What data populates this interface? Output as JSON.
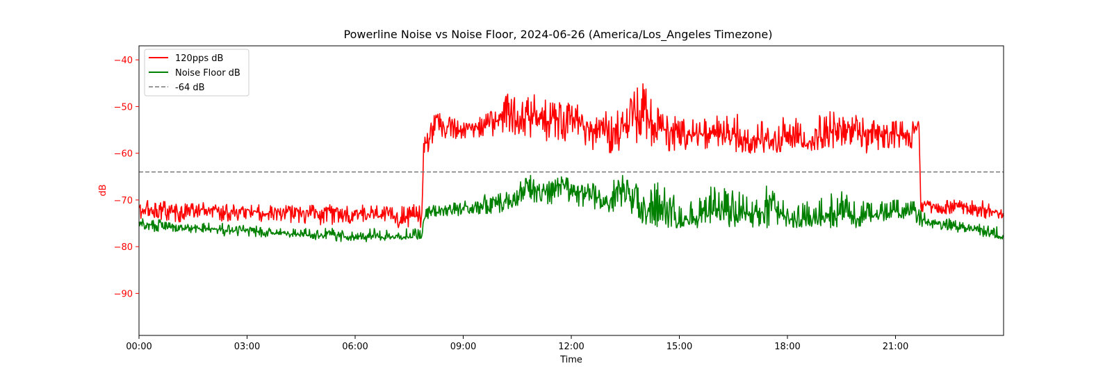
{
  "chart_data": {
    "type": "line",
    "title": "Powerline Noise vs Noise Floor, 2024-06-26 (America/Los_Angeles Timezone)",
    "xlabel": "Time",
    "ylabel": "dB",
    "xlim_hours": [
      0,
      24
    ],
    "ylim": [
      -99,
      -37
    ],
    "x_ticks": [
      {
        "hour": 0,
        "label": "00:00"
      },
      {
        "hour": 3,
        "label": "03:00"
      },
      {
        "hour": 6,
        "label": "06:00"
      },
      {
        "hour": 9,
        "label": "09:00"
      },
      {
        "hour": 12,
        "label": "12:00"
      },
      {
        "hour": 15,
        "label": "15:00"
      },
      {
        "hour": 18,
        "label": "18:00"
      },
      {
        "hour": 21,
        "label": "21:00"
      }
    ],
    "y_ticks": [
      {
        "value": -40,
        "label": "−40"
      },
      {
        "value": -50,
        "label": "−50"
      },
      {
        "value": -60,
        "label": "−60"
      },
      {
        "value": -70,
        "label": "−70"
      },
      {
        "value": -80,
        "label": "−80"
      },
      {
        "value": -90,
        "label": "−90"
      }
    ],
    "ylabel_color": "#ff0000",
    "legend_position": "upper-left",
    "threshold": {
      "name": "-64 dB",
      "value": -64,
      "color": "#777777",
      "style": "dashed"
    },
    "series": [
      {
        "name": "120pps dB",
        "color": "#ff0000",
        "x": [
          0,
          0.5,
          1,
          1.5,
          2,
          2.5,
          3,
          3.5,
          4,
          4.5,
          5,
          5.5,
          6,
          6.5,
          7,
          7.5,
          7.85,
          7.9,
          8,
          8.25,
          8.5,
          9,
          9.5,
          10,
          10.25,
          10.5,
          11,
          11.5,
          12,
          12.5,
          13,
          13.5,
          13.75,
          14,
          14.25,
          14.5,
          15,
          15.5,
          16,
          16.5,
          17,
          17.5,
          18,
          18.5,
          19,
          19.5,
          20,
          20.5,
          21,
          21.5,
          21.65,
          21.7,
          22,
          22.5,
          23,
          23.5,
          24
        ],
        "y": [
          -72,
          -72,
          -72.5,
          -72,
          -72,
          -72.5,
          -72,
          -73,
          -72.5,
          -72.5,
          -73,
          -72.5,
          -73,
          -73,
          -73.5,
          -73.5,
          -73.5,
          -57,
          -58,
          -52,
          -54,
          -55,
          -54,
          -53,
          -49,
          -53,
          -52,
          -54,
          -52,
          -55,
          -55,
          -54,
          -52,
          -52,
          -53,
          -55,
          -56,
          -56,
          -56,
          -56,
          -57,
          -57,
          -57,
          -58,
          -56,
          -55,
          -56,
          -55,
          -56,
          -56,
          -53,
          -71,
          -71,
          -71.5,
          -71.5,
          -72,
          -73
        ],
        "min_envelope": [
          -74,
          -74,
          -75,
          -74,
          -74,
          -75,
          -74,
          -75,
          -75,
          -75,
          -76,
          -75,
          -75,
          -75,
          -76,
          -76,
          -76,
          -60,
          -60,
          -57,
          -57,
          -57,
          -57,
          -56,
          -56,
          -56,
          -57,
          -58,
          -57,
          -59,
          -60,
          -60,
          -58,
          -58,
          -59,
          -60,
          -60,
          -59,
          -59,
          -60,
          -60,
          -60,
          -60,
          -60,
          -59,
          -59,
          -60,
          -60,
          -59,
          -59,
          -57,
          -73,
          -73,
          -73,
          -73,
          -74,
          -74
        ],
        "max_envelope": [
          -70,
          -70,
          -70.5,
          -70.5,
          -70.5,
          -71,
          -71,
          -71,
          -71,
          -71,
          -71,
          -71,
          -71,
          -71,
          -71,
          -71,
          -71,
          -56,
          -55,
          -50,
          -52,
          -53,
          -52,
          -50,
          -46,
          -49,
          -47,
          -49,
          -48,
          -52,
          -51,
          -48,
          -46,
          -45,
          -48,
          -51,
          -52,
          -53,
          -52,
          -51,
          -53,
          -53,
          -52,
          -53,
          -51,
          -51,
          -52,
          -52,
          -53,
          -53,
          -52,
          -70,
          -70,
          -70,
          -70,
          -70,
          -71
        ]
      },
      {
        "name": "Noise Floor dB",
        "color": "#008000",
        "x": [
          0,
          0.5,
          1,
          1.5,
          2,
          2.5,
          3,
          3.5,
          4,
          4.5,
          5,
          5.5,
          6,
          6.5,
          7,
          7.5,
          7.85,
          7.9,
          8,
          8.5,
          9,
          9.5,
          10,
          10.5,
          10.8,
          11,
          11.5,
          11.7,
          12,
          12.5,
          13,
          13.3,
          13.5,
          14,
          14.25,
          14.5,
          14.75,
          15,
          15.5,
          16,
          16.5,
          17,
          17.5,
          18,
          18.5,
          19,
          19.5,
          20,
          20.5,
          21,
          21.5,
          21.7,
          22,
          22.5,
          23,
          23.5,
          24
        ],
        "y": [
          -75,
          -75.5,
          -76,
          -76,
          -76,
          -76.5,
          -76.5,
          -77,
          -77,
          -77.5,
          -77.5,
          -77.5,
          -78,
          -78,
          -78,
          -78,
          -78,
          -74.5,
          -72.5,
          -72,
          -72,
          -71.5,
          -71,
          -70,
          -66,
          -68,
          -68,
          -66,
          -69,
          -68,
          -71,
          -67,
          -68,
          -71,
          -72,
          -73,
          -72,
          -75,
          -74,
          -72,
          -73,
          -73,
          -71,
          -74,
          -74,
          -73,
          -73,
          -74,
          -73,
          -72.5,
          -72,
          -74,
          -75,
          -75.5,
          -76,
          -77,
          -78
        ],
        "min_envelope": [
          -76,
          -77,
          -77,
          -77,
          -77,
          -78,
          -78,
          -78,
          -78,
          -78,
          -79,
          -79,
          -79,
          -79,
          -78.5,
          -78.5,
          -78.5,
          -75,
          -74,
          -73.5,
          -73.5,
          -73,
          -73,
          -72,
          -69,
          -71,
          -71,
          -70,
          -72,
          -72,
          -74,
          -72,
          -73,
          -75,
          -76,
          -76,
          -76,
          -76,
          -76,
          -75,
          -76,
          -76,
          -76,
          -76,
          -76,
          -76,
          -76,
          -76,
          -75,
          -74,
          -74,
          -76,
          -76,
          -77,
          -77,
          -78,
          -78.5
        ],
        "max_envelope": [
          -74,
          -74,
          -75,
          -75,
          -74,
          -75,
          -75,
          -76,
          -76,
          -76,
          -76,
          -76,
          -77,
          -76,
          -76,
          -76,
          -76,
          -73,
          -71,
          -70.5,
          -70,
          -69,
          -68,
          -67,
          -64,
          -66,
          -66,
          -64,
          -66,
          -66,
          -68,
          -64,
          -65,
          -67,
          -66,
          -66,
          -67,
          -71,
          -70,
          -66,
          -68,
          -69,
          -66,
          -71,
          -69,
          -68,
          -68,
          -70,
          -70,
          -70,
          -70,
          -72,
          -74,
          -74,
          -75,
          -75,
          -76
        ]
      }
    ]
  }
}
